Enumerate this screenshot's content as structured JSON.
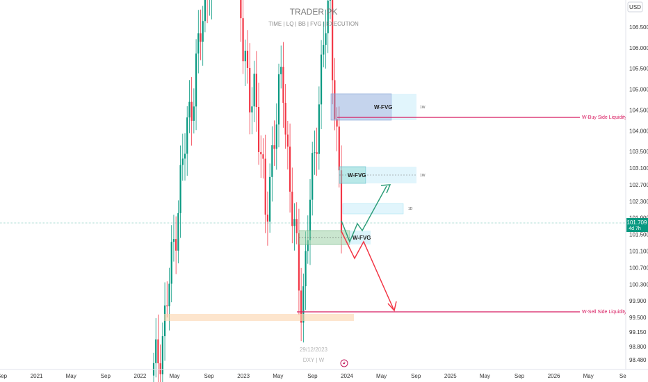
{
  "header": {
    "title": "TRADER PK",
    "subtitle": "TIME  |  LQ  |  BB  |  FVG  |  EXECUTION"
  },
  "footer": {
    "date": "29/12/2023",
    "symbol": "DXY | W"
  },
  "currency": "USD",
  "price_badge": {
    "price": "101.709",
    "countdown": "4d 7h",
    "color": "#089981"
  },
  "colors": {
    "up": "#089981",
    "down": "#f23645",
    "liquidity": "#d81b60",
    "fvg_blue": "#7fc4e6",
    "fvg_green": "#9ed1a8"
  },
  "chart_data": {
    "type": "candlestick",
    "timeframe": "W",
    "x_ticks": [
      "Sep",
      "2021",
      "May",
      "Sep",
      "2022",
      "May",
      "Sep",
      "2023",
      "May",
      "Sep",
      "2024",
      "May",
      "Sep",
      "2025",
      "May",
      "Sep",
      "2026",
      "May",
      "Se"
    ],
    "y_ticks": [
      "106.500",
      "106.000",
      "105.500",
      "105.000",
      "104.500",
      "104.000",
      "103.500",
      "103.100",
      "102.700",
      "102.300",
      "101.900",
      "101.500",
      "101.100",
      "100.700",
      "100.300",
      "99.900",
      "99.500",
      "99.150",
      "98.800",
      "98.480"
    ],
    "last_price": 101.709,
    "zones": [
      {
        "label": "W-FVG",
        "tag": "1W",
        "top": 104.85,
        "bottom": 104.2,
        "color": "blue"
      },
      {
        "label": "W-FVG",
        "tag": "1W",
        "top": 103.05,
        "bottom": 102.65,
        "color": "cyan"
      },
      {
        "label": "",
        "tag": "1D",
        "top": 102.05,
        "bottom": 101.85,
        "color": "cyan"
      },
      {
        "label": "W-FVG",
        "tag": "",
        "top": 101.5,
        "bottom": 101.2,
        "color": "green"
      }
    ],
    "levels": [
      {
        "label": "W-Buy Side Liquidity",
        "value": 104.25
      },
      {
        "label": "W-Sell Side Liquidity",
        "value": 99.6
      }
    ],
    "projections": [
      {
        "color": "green",
        "points": [
          [
            101.8,
            "2024-01"
          ],
          [
            101.35,
            "2024-02"
          ],
          [
            101.8,
            "2024-02"
          ],
          [
            101.6,
            "2024-03"
          ],
          [
            102.65,
            "2024-05"
          ]
        ]
      },
      {
        "color": "red",
        "points": [
          [
            101.5,
            "2024-01"
          ],
          [
            100.9,
            "2024-02"
          ],
          [
            101.4,
            "2024-03"
          ],
          [
            99.65,
            "2024-05"
          ]
        ]
      }
    ]
  }
}
